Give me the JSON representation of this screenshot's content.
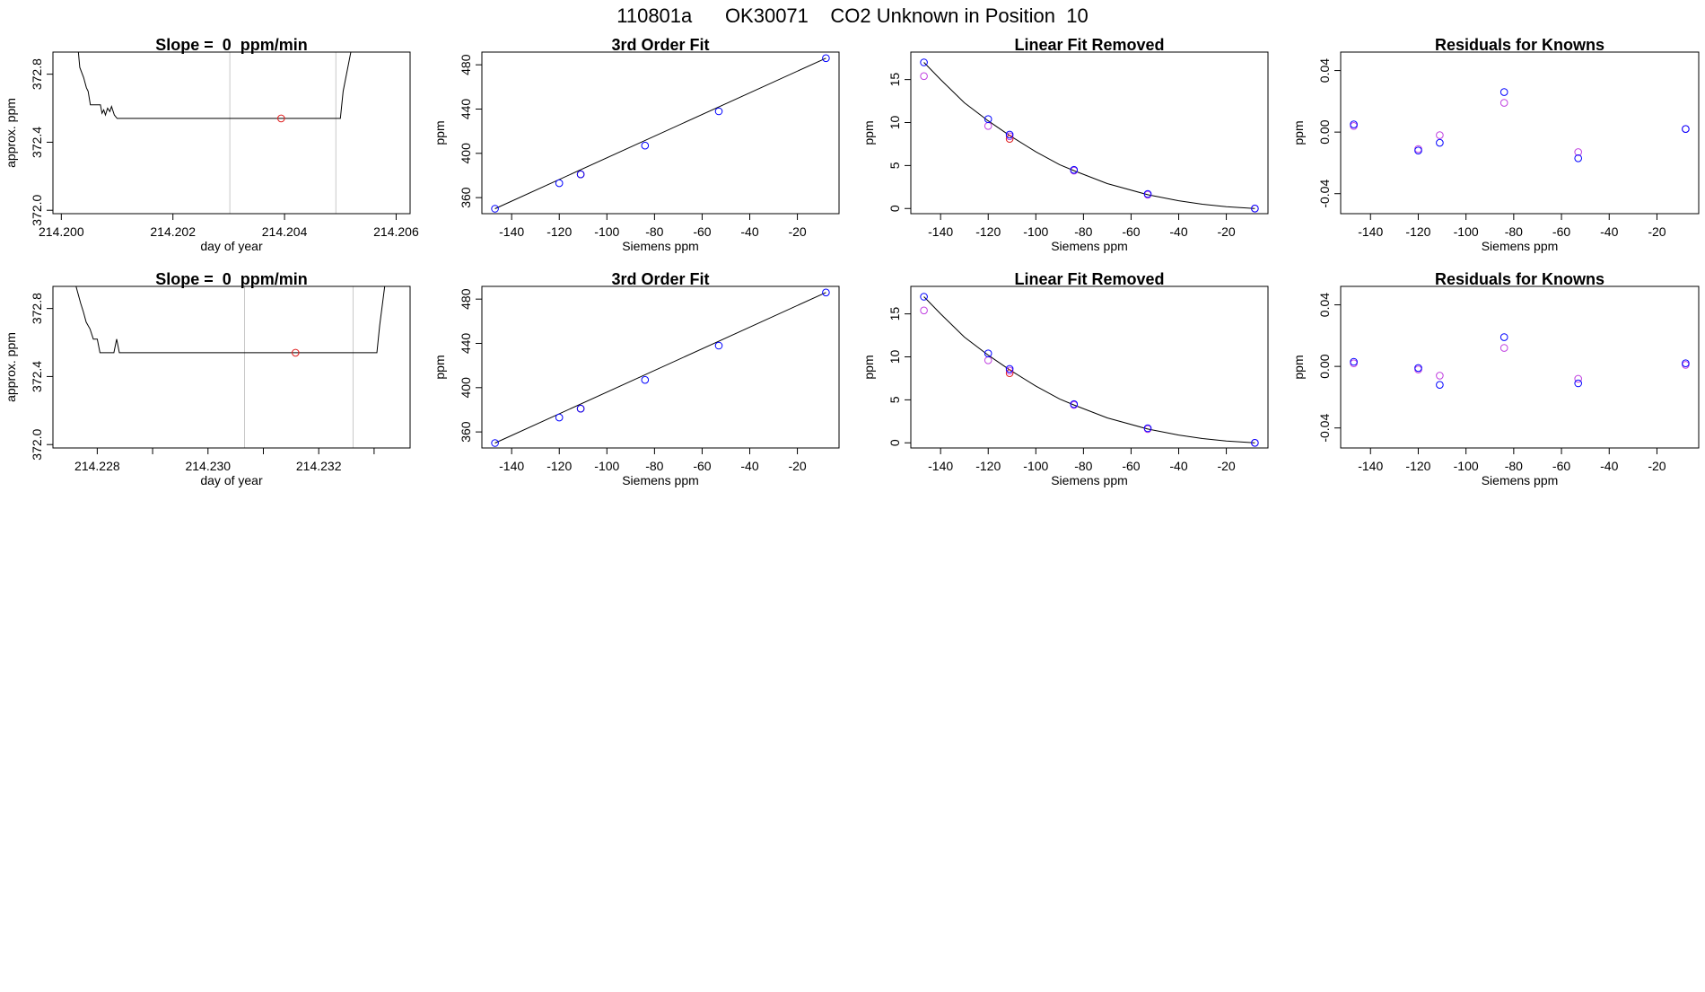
{
  "page_title": "110801a      OK30071    CO2 Unknown in Position  10",
  "colors": {
    "curve": "#000000",
    "known": "#0000ff",
    "known_alt": "#c040e0",
    "unknown": "#e02020",
    "marker": "#c8c8c8"
  },
  "chart_data": [
    {
      "type": "line",
      "title": "Slope =  0  ppm/min",
      "xlabel": "day of year",
      "ylabel": "approx. ppm",
      "xlim": [
        214.19985,
        214.20625
      ],
      "ylim": [
        371.98,
        372.93
      ],
      "xticks": [
        214.2,
        214.202,
        214.204,
        214.206
      ],
      "xtick_labels": [
        "214.200",
        "214.202",
        "214.204",
        "214.206"
      ],
      "yticks": [
        372.0,
        372.4,
        372.8
      ],
      "ytick_labels": [
        "372.0",
        "372.4",
        "372.8"
      ],
      "trace": [
        [
          214.2003,
          372.95
        ],
        [
          214.20033,
          372.84
        ],
        [
          214.2004,
          372.78
        ],
        [
          214.20045,
          372.72
        ],
        [
          214.20048,
          372.7
        ],
        [
          214.20052,
          372.62
        ],
        [
          214.20058,
          372.62
        ],
        [
          214.2007,
          372.62
        ],
        [
          214.20073,
          372.57
        ],
        [
          214.20076,
          372.59
        ],
        [
          214.20079,
          372.56
        ],
        [
          214.20083,
          372.6
        ],
        [
          214.20087,
          372.58
        ],
        [
          214.2009,
          372.61
        ],
        [
          214.20095,
          372.56
        ],
        [
          214.201,
          372.54
        ],
        [
          214.20107,
          372.54
        ],
        [
          214.205,
          372.54
        ],
        [
          214.20505,
          372.7
        ],
        [
          214.2052,
          372.95
        ]
      ],
      "markers": [
        214.20302,
        214.20492
      ],
      "point": {
        "x": 214.20394,
        "y": 372.54
      }
    },
    {
      "type": "scatter",
      "title": "3rd Order Fit",
      "xlabel": "Siemens ppm",
      "ylabel": "ppm",
      "xlim": [
        -152.5,
        -2.5
      ],
      "ylim": [
        345.5,
        491.5
      ],
      "xticks": [
        -140,
        -120,
        -100,
        -80,
        -60,
        -40,
        -20
      ],
      "xtick_labels": [
        "-140",
        "-120",
        "-100",
        "-80",
        "-60",
        "-40",
        "-20"
      ],
      "yticks": [
        360,
        400,
        440,
        480
      ],
      "ytick_labels": [
        "360",
        "400",
        "440",
        "480"
      ],
      "fit_line": [
        [
          -147,
          350
        ],
        [
          -8,
          486
        ]
      ],
      "knowns": [
        [
          -147,
          350
        ],
        [
          -120,
          373
        ],
        [
          -111,
          381
        ],
        [
          -84,
          407
        ],
        [
          -53,
          438
        ],
        [
          -8,
          486
        ]
      ],
      "unknown": [
        -111,
        381
      ]
    },
    {
      "type": "scatter",
      "title": "Linear Fit Removed",
      "xlabel": "Siemens ppm",
      "ylabel": "ppm",
      "xlim": [
        -152.5,
        -2.5
      ],
      "ylim": [
        -0.6,
        18.2
      ],
      "xticks": [
        -140,
        -120,
        -100,
        -80,
        -60,
        -40,
        -20
      ],
      "xtick_labels": [
        "-140",
        "-120",
        "-100",
        "-80",
        "-60",
        "-40",
        "-20"
      ],
      "yticks": [
        0,
        5,
        10,
        15
      ],
      "ytick_labels": [
        "0",
        "5",
        "10",
        "15"
      ],
      "curve": [
        [
          -147,
          17.0
        ],
        [
          -140,
          15.0
        ],
        [
          -130,
          12.3
        ],
        [
          -120,
          10.2
        ],
        [
          -111,
          8.5
        ],
        [
          -100,
          6.6
        ],
        [
          -90,
          5.1
        ],
        [
          -84,
          4.4
        ],
        [
          -70,
          2.9
        ],
        [
          -53,
          1.6
        ],
        [
          -40,
          0.9
        ],
        [
          -30,
          0.5
        ],
        [
          -20,
          0.2
        ],
        [
          -8,
          0.0
        ]
      ],
      "knowns": [
        [
          -147,
          17.0
        ],
        [
          -120,
          10.4
        ],
        [
          -111,
          8.6
        ],
        [
          -84,
          4.5
        ],
        [
          -53,
          1.7
        ],
        [
          -8,
          0.0
        ]
      ],
      "knowns_alt": [
        [
          -147,
          15.4
        ],
        [
          -120,
          9.6
        ],
        [
          -111,
          8.4
        ],
        [
          -84,
          4.4
        ],
        [
          -53,
          1.6
        ],
        [
          -8,
          0.0
        ]
      ],
      "unknown": [
        -111,
        8.1
      ]
    },
    {
      "type": "scatter",
      "title": "Residuals for Knowns",
      "xlabel": "Siemens ppm",
      "ylabel": "ppm",
      "xlim": [
        -152.5,
        -2.5
      ],
      "ylim": [
        -0.053,
        0.052
      ],
      "xticks": [
        -140,
        -120,
        -100,
        -80,
        -60,
        -40,
        -20
      ],
      "xtick_labels": [
        "-140",
        "-120",
        "-100",
        "-80",
        "-60",
        "-40",
        "-20"
      ],
      "yticks": [
        -0.04,
        0.0,
        0.04
      ],
      "ytick_labels": [
        "-0.04",
        "0.00",
        "0.04"
      ],
      "knowns": [
        [
          -147,
          0.005
        ],
        [
          -120,
          -0.012
        ],
        [
          -111,
          -0.007
        ],
        [
          -84,
          0.026
        ],
        [
          -53,
          -0.017
        ],
        [
          -8,
          0.002
        ]
      ],
      "knowns_alt": [
        [
          -147,
          0.004
        ],
        [
          -120,
          -0.011
        ],
        [
          -111,
          -0.002
        ],
        [
          -84,
          0.019
        ],
        [
          -53,
          -0.013
        ],
        [
          -8,
          0.002
        ]
      ]
    },
    {
      "type": "line",
      "title": "Slope =  0  ppm/min",
      "xlabel": "day of year",
      "ylabel": "approx. ppm",
      "xlim": [
        214.2272,
        214.23365
      ],
      "ylim": [
        371.98,
        372.93
      ],
      "xticks": [
        214.228,
        214.229,
        214.23,
        214.231,
        214.232,
        214.233
      ],
      "xtick_labels": [
        "214.228",
        "",
        "214.230",
        "",
        "214.232",
        ""
      ],
      "yticks": [
        372.0,
        372.4,
        372.8
      ],
      "ytick_labels": [
        "372.0",
        "372.4",
        "372.8"
      ],
      "trace": [
        [
          214.2276,
          372.95
        ],
        [
          214.2277,
          372.83
        ],
        [
          214.22775,
          372.78
        ],
        [
          214.2278,
          372.72
        ],
        [
          214.22787,
          372.68
        ],
        [
          214.22793,
          372.62
        ],
        [
          214.228,
          372.62
        ],
        [
          214.22805,
          372.54
        ],
        [
          214.2283,
          372.54
        ],
        [
          214.22835,
          372.62
        ],
        [
          214.2284,
          372.54
        ],
        [
          214.23305,
          372.54
        ],
        [
          214.2331,
          372.7
        ],
        [
          214.2332,
          372.95
        ]
      ],
      "markers": [
        214.23066,
        214.23262
      ],
      "point": {
        "x": 214.23158,
        "y": 372.54
      }
    },
    {
      "type": "scatter",
      "title": "3rd Order Fit",
      "xlabel": "Siemens ppm",
      "ylabel": "ppm",
      "xlim": [
        -152.5,
        -2.5
      ],
      "ylim": [
        345.5,
        491.5
      ],
      "xticks": [
        -140,
        -120,
        -100,
        -80,
        -60,
        -40,
        -20
      ],
      "xtick_labels": [
        "-140",
        "-120",
        "-100",
        "-80",
        "-60",
        "-40",
        "-20"
      ],
      "yticks": [
        360,
        400,
        440,
        480
      ],
      "ytick_labels": [
        "360",
        "400",
        "440",
        "480"
      ],
      "fit_line": [
        [
          -147,
          350
        ],
        [
          -8,
          486
        ]
      ],
      "knowns": [
        [
          -147,
          350
        ],
        [
          -120,
          373
        ],
        [
          -111,
          381
        ],
        [
          -84,
          407
        ],
        [
          -53,
          438
        ],
        [
          -8,
          486
        ]
      ],
      "unknown": [
        -111,
        381
      ]
    },
    {
      "type": "scatter",
      "title": "Linear Fit Removed",
      "xlabel": "Siemens ppm",
      "ylabel": "ppm",
      "xlim": [
        -152.5,
        -2.5
      ],
      "ylim": [
        -0.6,
        18.2
      ],
      "xticks": [
        -140,
        -120,
        -100,
        -80,
        -60,
        -40,
        -20
      ],
      "xtick_labels": [
        "-140",
        "-120",
        "-100",
        "-80",
        "-60",
        "-40",
        "-20"
      ],
      "yticks": [
        0,
        5,
        10,
        15
      ],
      "ytick_labels": [
        "0",
        "5",
        "10",
        "15"
      ],
      "curve": [
        [
          -147,
          17.0
        ],
        [
          -140,
          15.0
        ],
        [
          -130,
          12.3
        ],
        [
          -120,
          10.2
        ],
        [
          -111,
          8.5
        ],
        [
          -100,
          6.6
        ],
        [
          -90,
          5.1
        ],
        [
          -84,
          4.4
        ],
        [
          -70,
          2.9
        ],
        [
          -53,
          1.6
        ],
        [
          -40,
          0.9
        ],
        [
          -30,
          0.5
        ],
        [
          -20,
          0.2
        ],
        [
          -8,
          0.0
        ]
      ],
      "knowns": [
        [
          -147,
          17.0
        ],
        [
          -120,
          10.4
        ],
        [
          -111,
          8.6
        ],
        [
          -84,
          4.5
        ],
        [
          -53,
          1.7
        ],
        [
          -8,
          0.0
        ]
      ],
      "knowns_alt": [
        [
          -147,
          15.4
        ],
        [
          -120,
          9.6
        ],
        [
          -111,
          8.4
        ],
        [
          -84,
          4.4
        ],
        [
          -53,
          1.6
        ],
        [
          -8,
          0.0
        ]
      ],
      "unknown": [
        -111,
        8.1
      ]
    },
    {
      "type": "scatter",
      "title": "Residuals for Knowns",
      "xlabel": "Siemens ppm",
      "ylabel": "ppm",
      "xlim": [
        -152.5,
        -2.5
      ],
      "ylim": [
        -0.053,
        0.052
      ],
      "xticks": [
        -140,
        -120,
        -100,
        -80,
        -60,
        -40,
        -20
      ],
      "xtick_labels": [
        "-140",
        "-120",
        "-100",
        "-80",
        "-60",
        "-40",
        "-20"
      ],
      "yticks": [
        -0.04,
        0.0,
        0.04
      ],
      "ytick_labels": [
        "-0.04",
        "0.00",
        "0.04"
      ],
      "knowns": [
        [
          -147,
          0.003
        ],
        [
          -120,
          -0.001
        ],
        [
          -111,
          -0.012
        ],
        [
          -84,
          0.019
        ],
        [
          -53,
          -0.011
        ],
        [
          -8,
          0.002
        ]
      ],
      "knowns_alt": [
        [
          -147,
          0.002
        ],
        [
          -120,
          -0.002
        ],
        [
          -111,
          -0.006
        ],
        [
          -84,
          0.012
        ],
        [
          -53,
          -0.008
        ],
        [
          -8,
          0.001
        ]
      ]
    }
  ]
}
